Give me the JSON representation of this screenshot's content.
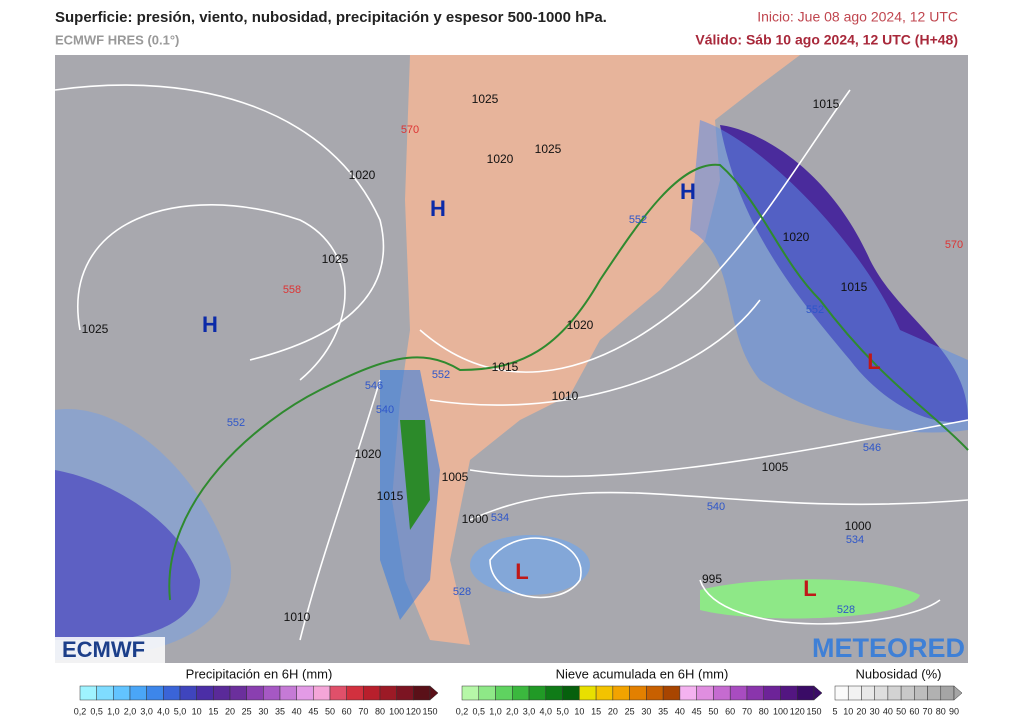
{
  "header": {
    "title": "Superficie: presión, viento, nubosidad, precipitación y espesor 500-1000 hPa.",
    "model": "ECMWF HRES (0.1°)",
    "init": "Inicio: Jue 08 ago 2024, 12 UTC",
    "valid": "Válido: Sáb 10 ago 2024, 12 UTC (H+48)"
  },
  "map": {
    "labels": [
      "H",
      "H",
      "H",
      "L",
      "L",
      "L",
      "1025",
      "1020",
      "1025",
      "1020",
      "1025",
      "1015",
      "1020",
      "1025",
      "1020",
      "1015",
      "1010",
      "1005",
      "1000",
      "995",
      "1000",
      "1005",
      "1010",
      "1015",
      "1020",
      "1015",
      "570",
      "558",
      "552",
      "552",
      "552",
      "546",
      "540",
      "534",
      "528",
      "546",
      "540",
      "534",
      "528",
      "570",
      "552"
    ]
  },
  "logos": {
    "left": "ECMWF",
    "right": "METEORED"
  },
  "legends": [
    {
      "title": "Precipitación en 6H (mm)",
      "ticks": [
        "0,2",
        "0,5",
        "1,0",
        "2,0",
        "3,0",
        "4,0",
        "5,0",
        "10",
        "15",
        "20",
        "25",
        "30",
        "35",
        "40",
        "45",
        "50",
        "60",
        "70",
        "80",
        "100",
        "120",
        "150"
      ],
      "colors": [
        "#9ff3ff",
        "#7fdcff",
        "#62c4ff",
        "#4aa6f7",
        "#3d86ea",
        "#3a64d8",
        "#3f45bd",
        "#4b2ea6",
        "#5a2a99",
        "#6b2f9c",
        "#8a3fb0",
        "#a658c4",
        "#c57ad6",
        "#e39be6",
        "#f4a6d8",
        "#e0506a",
        "#d2303e",
        "#b81f2c",
        "#9c1a26",
        "#7c1422",
        "#5a1018"
      ]
    },
    {
      "title": "Nieve acumulada en 6H (mm)",
      "ticks": [
        "0,2",
        "0,5",
        "1,0",
        "2,0",
        "3,0",
        "4,0",
        "5,0",
        "10",
        "15",
        "20",
        "25",
        "30",
        "35",
        "40",
        "45",
        "50",
        "60",
        "70",
        "80",
        "100",
        "120",
        "150"
      ],
      "colors": [
        "#b6f7a8",
        "#8ee887",
        "#5fd360",
        "#3bb83e",
        "#219a26",
        "#0f7b17",
        "#06600d",
        "#e8e000",
        "#f3c300",
        "#f2a300",
        "#e38000",
        "#c86000",
        "#a84500",
        "#f4b2f0",
        "#e08ee0",
        "#c56bd0",
        "#a84cc0",
        "#8a35ac",
        "#6d2398",
        "#531681",
        "#3a0b66"
      ]
    },
    {
      "title": "Nubosidad (%)",
      "ticks": [
        "5",
        "10",
        "20",
        "30",
        "40",
        "50",
        "60",
        "70",
        "80",
        "90"
      ],
      "colors": [
        "#fafafa",
        "#f2f2f2",
        "#e8e8e8",
        "#dedede",
        "#d3d3d3",
        "#c8c8c8",
        "#bdbdbd",
        "#b1b1b1",
        "#a5a5a5"
      ]
    }
  ]
}
